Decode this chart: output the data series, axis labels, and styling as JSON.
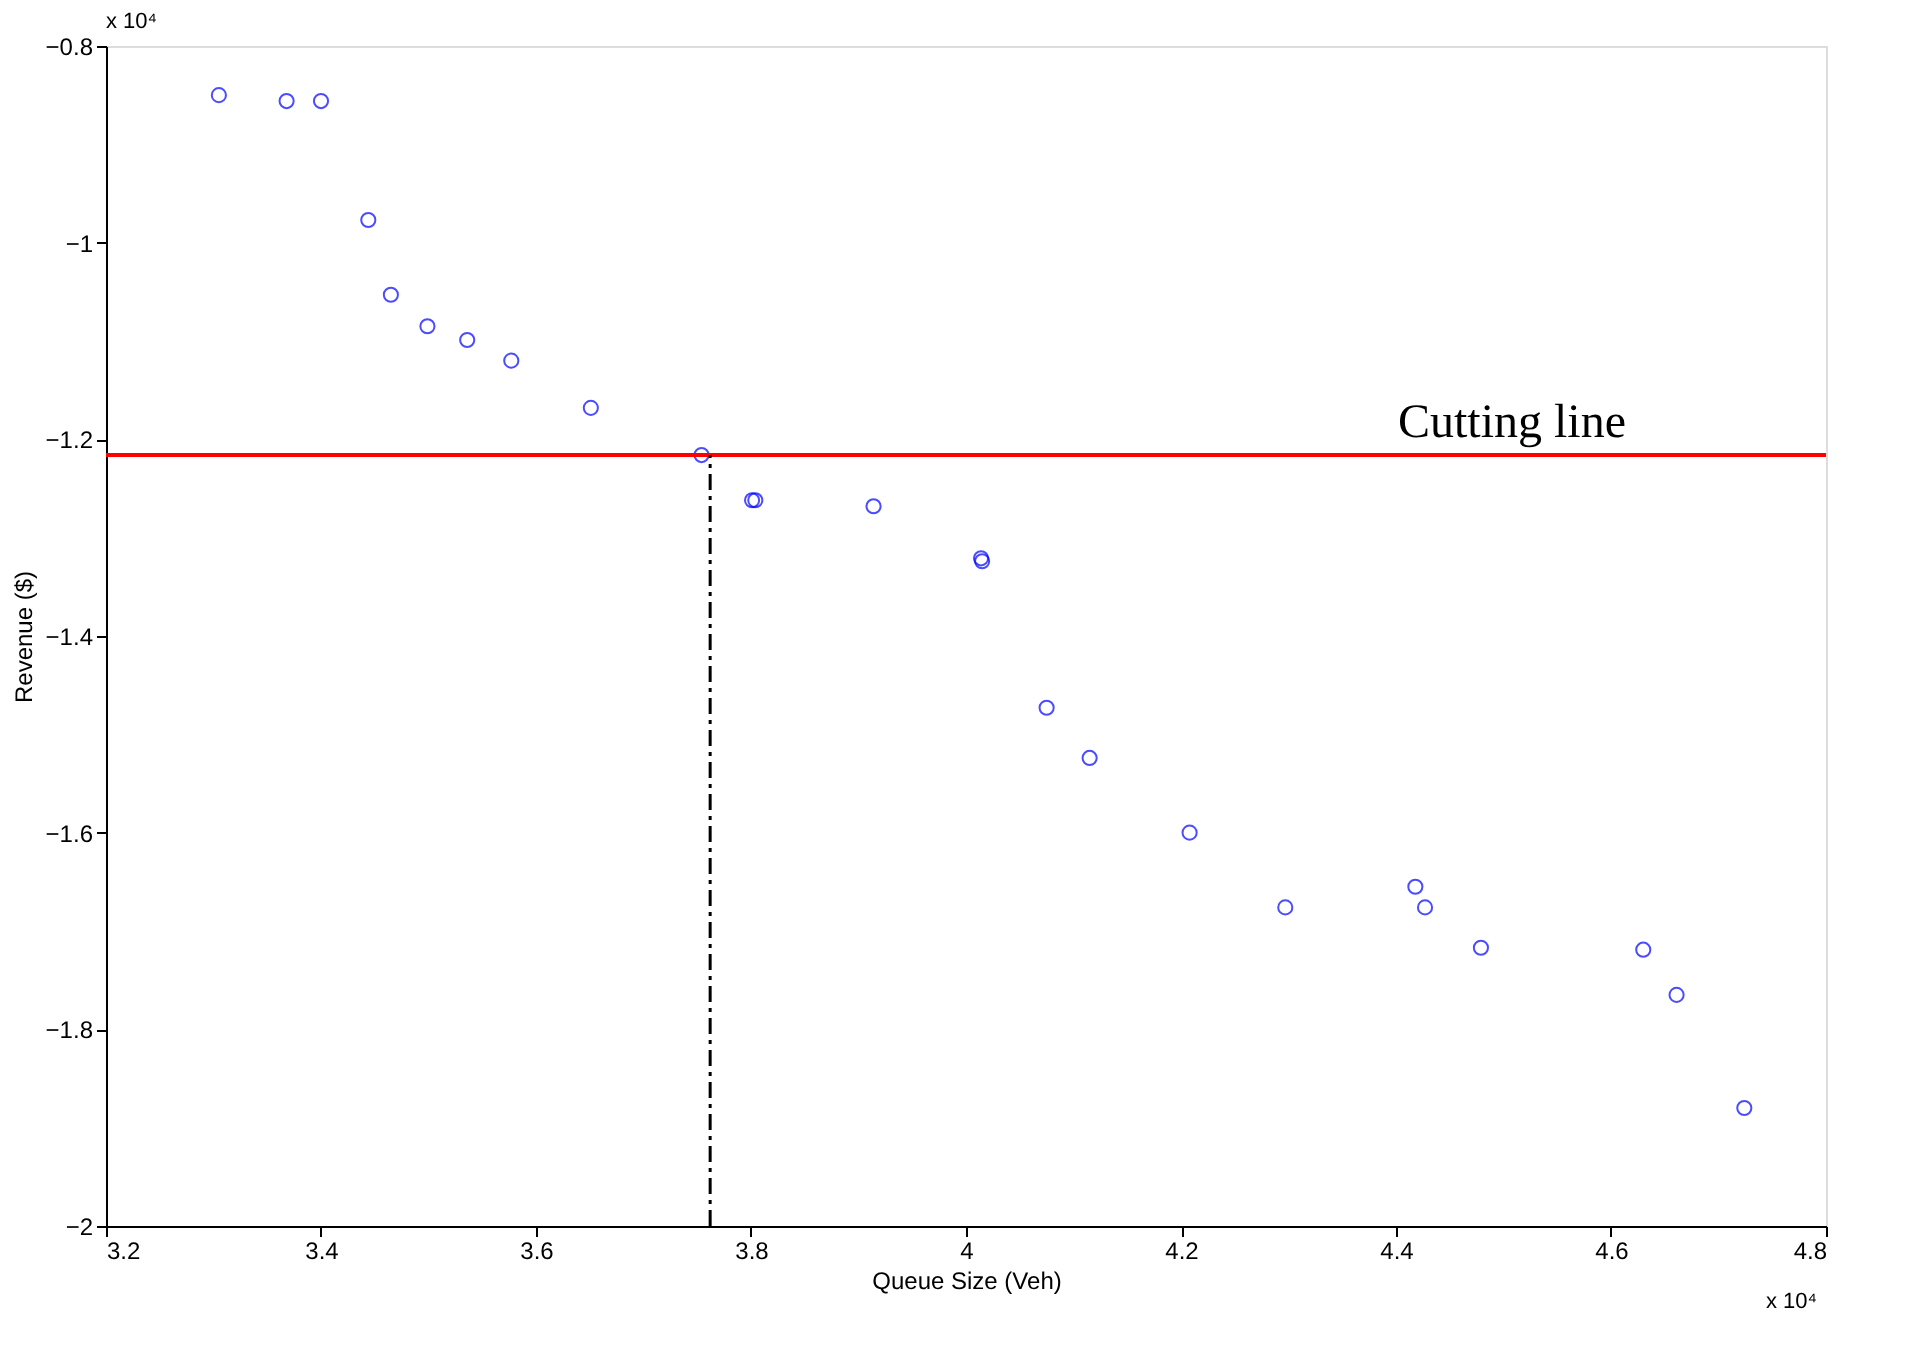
{
  "chart_data": {
    "type": "scatter",
    "xlabel": "Queue Size (Veh)",
    "ylabel": "Revenue ($)",
    "x": [
      3.305,
      3.368,
      3.4,
      3.444,
      3.465,
      3.499,
      3.536,
      3.577,
      3.651,
      3.754,
      3.801,
      3.804,
      3.914,
      4.014,
      4.015,
      4.075,
      4.115,
      4.208,
      4.297,
      4.418,
      4.427,
      4.479,
      4.63,
      4.661,
      4.724
    ],
    "series": [
      {
        "color": "#0000ff",
        "values": [
          -0.85,
          -0.856,
          -0.856,
          -0.977,
          -1.053,
          -1.085,
          -1.099,
          -1.12,
          -1.168,
          -1.216,
          -1.262,
          -1.262,
          -1.268,
          -1.321,
          -1.324,
          -1.473,
          -1.524,
          -1.6,
          -1.676,
          -1.655,
          -1.676,
          -1.717,
          -1.719,
          -1.765,
          -1.88
        ]
      }
    ],
    "xlim": [
      3.2,
      4.8
    ],
    "xticks": [
      3.2,
      3.4,
      3.6,
      3.8,
      4,
      4.2,
      4.4,
      4.6,
      4.8
    ],
    "ylim": [
      -2,
      -0.8
    ],
    "yticks": [
      -2,
      -1.8,
      -1.6,
      -1.4,
      -1.2,
      -1,
      -0.8
    ],
    "marker": "circle",
    "grid": false,
    "ref_lines": [
      {
        "axis": "y",
        "value": -1.216,
        "label": "Cutting line",
        "color": "#ff0000",
        "line_style": "solid"
      },
      {
        "axis": "x",
        "value": 3.762,
        "color": "#000000",
        "line_style": "dashed"
      }
    ],
    "annotations": [
      "x 10⁴",
      "x 10⁴"
    ]
  }
}
